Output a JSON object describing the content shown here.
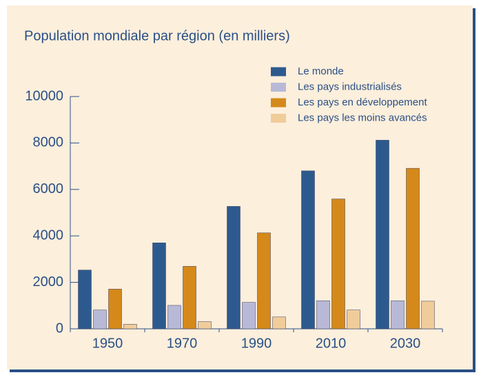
{
  "chart_data": {
    "type": "bar",
    "title": "Population mondiale par région (en milliers)",
    "categories": [
      "1950",
      "1970",
      "1990",
      "2010",
      "2030"
    ],
    "series": [
      {
        "name": "Le monde",
        "color": "#2d5a8e",
        "values": [
          2530,
          3700,
          5270,
          6800,
          8120
        ]
      },
      {
        "name": "Les pays industrialisés",
        "color": "#b8b9d6",
        "values": [
          810,
          1010,
          1140,
          1210,
          1210
        ]
      },
      {
        "name": "Les pays en développement",
        "color": "#d4891a",
        "values": [
          1710,
          2690,
          4130,
          5590,
          6910
        ]
      },
      {
        "name": "Les pays les moins avancés",
        "color": "#f0cc9a",
        "values": [
          200,
          310,
          510,
          810,
          1190
        ]
      }
    ],
    "ylim": [
      0,
      10000
    ],
    "yticks": [
      0,
      2000,
      4000,
      6000,
      8000,
      10000
    ],
    "legend": "top-right"
  }
}
